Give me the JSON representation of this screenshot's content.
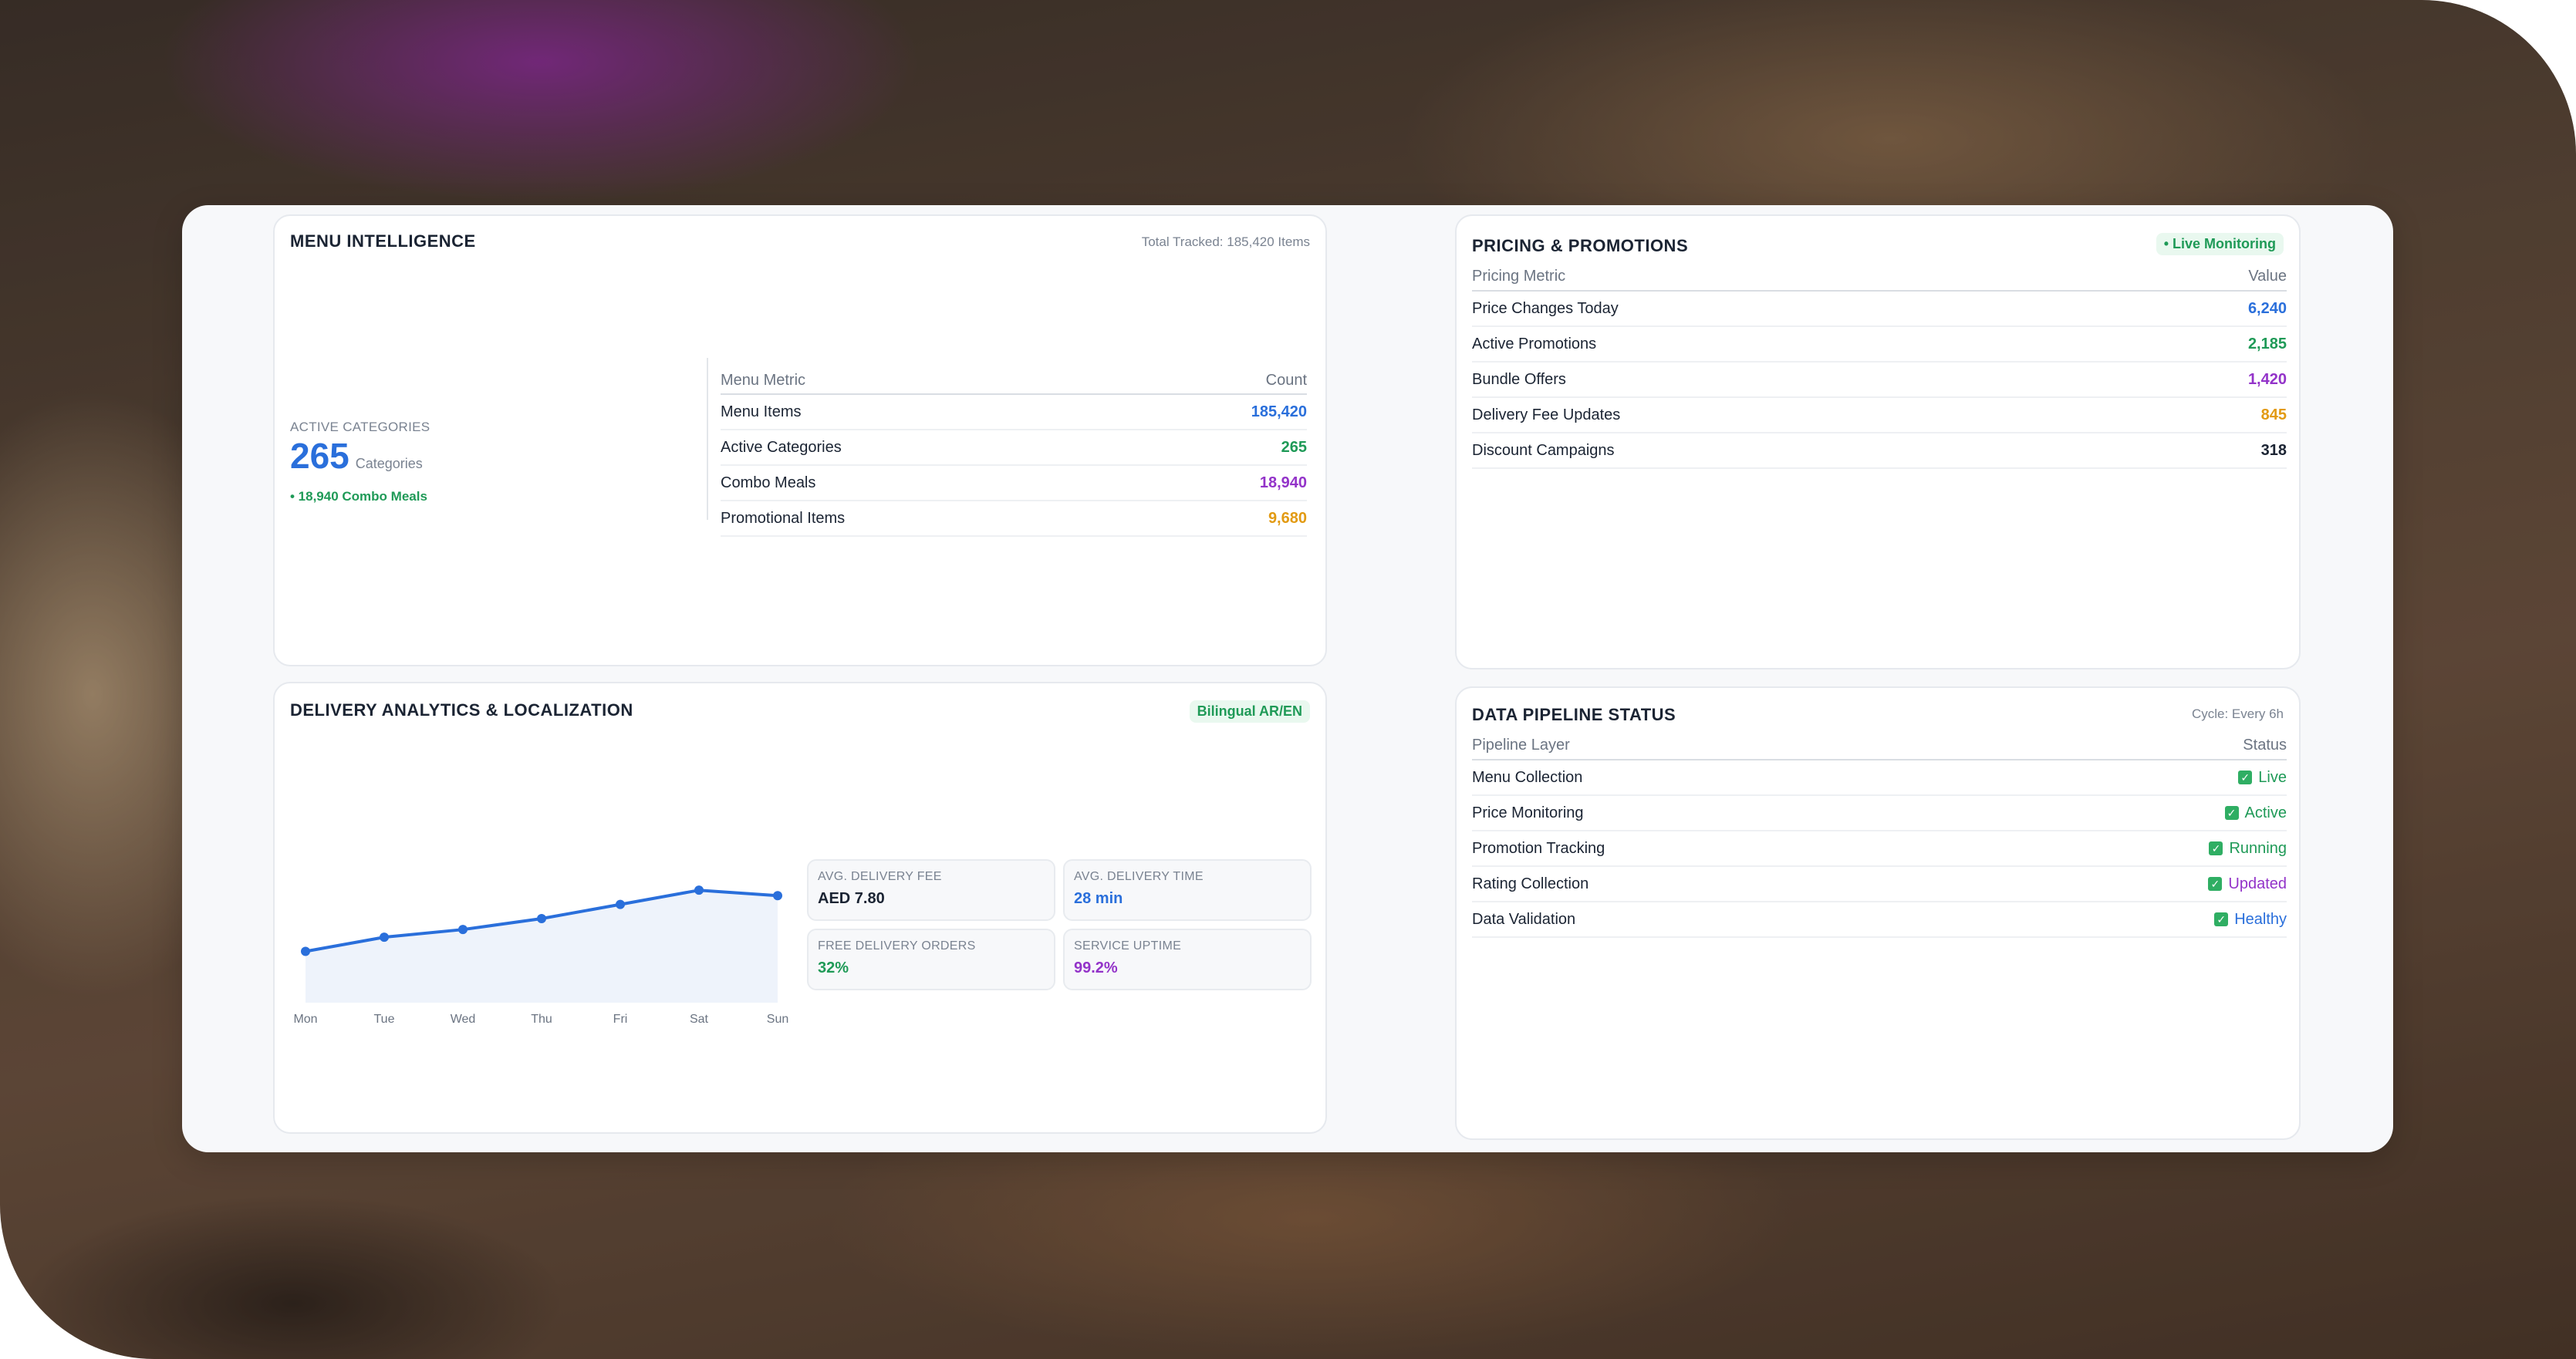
{
  "menu_intelligence": {
    "title": "MENU INTELLIGENCE",
    "total_tracked": "Total Tracked: 185,420 Items",
    "active_categories_label": "ACTIVE CATEGORIES",
    "active_categories_value": "265",
    "active_categories_unit": "Categories",
    "combo_note": "• 18,940 Combo Meals",
    "table_header": {
      "metric": "Menu Metric",
      "count": "Count"
    },
    "rows": [
      {
        "metric": "Menu Items",
        "count": "185,420",
        "color": "#2a6fdb"
      },
      {
        "metric": "Active Categories",
        "count": "265",
        "color": "#1f9a57"
      },
      {
        "metric": "Combo Meals",
        "count": "18,940",
        "color": "#9333c9"
      },
      {
        "metric": "Promotional Items",
        "count": "9,680",
        "color": "#e29a12"
      }
    ]
  },
  "pricing": {
    "title": "PRICING & PROMOTIONS",
    "badge": "• Live Monitoring",
    "table_header": {
      "metric": "Pricing Metric",
      "value": "Value"
    },
    "rows": [
      {
        "metric": "Price Changes Today",
        "value": "6,240",
        "color": "#2a6fdb"
      },
      {
        "metric": "Active Promotions",
        "value": "2,185",
        "color": "#1f9a57"
      },
      {
        "metric": "Bundle Offers",
        "value": "1,420",
        "color": "#9333c9"
      },
      {
        "metric": "Delivery Fee Updates",
        "value": "845",
        "color": "#e29a12"
      },
      {
        "metric": "Discount Campaigns",
        "value": "318",
        "color": "#1b2433"
      }
    ]
  },
  "delivery": {
    "title": "DELIVERY ANALYTICS & LOCALIZATION",
    "badge": "Bilingual AR/EN",
    "stats": [
      {
        "label": "AVG. DELIVERY FEE",
        "value": "AED 7.80",
        "color": "#1b2433"
      },
      {
        "label": "AVG. DELIVERY TIME",
        "value": "28 min",
        "color": "#2a6fdb"
      },
      {
        "label": "FREE DELIVERY ORDERS",
        "value": "32%",
        "color": "#1f9a57"
      },
      {
        "label": "SERVICE UPTIME",
        "value": "99.2%",
        "color": "#9333c9"
      }
    ]
  },
  "chart_data": {
    "type": "area",
    "categories": [
      "Mon",
      "Tue",
      "Wed",
      "Thu",
      "Fri",
      "Sat",
      "Sun"
    ],
    "values": [
      10,
      23,
      30,
      40,
      53,
      66,
      61
    ],
    "ylim": [
      -20,
      100
    ],
    "color": "#2a6fdb",
    "grid": false,
    "title": "",
    "xlabel": "",
    "ylabel": ""
  },
  "pipeline": {
    "title": "DATA PIPELINE STATUS",
    "cycle": "Cycle: Every 6h",
    "table_header": {
      "layer": "Pipeline Layer",
      "status": "Status"
    },
    "rows": [
      {
        "layer": "Menu Collection",
        "status": "Live",
        "color": "#1f9a57"
      },
      {
        "layer": "Price Monitoring",
        "status": "Active",
        "color": "#1f9a57"
      },
      {
        "layer": "Promotion Tracking",
        "status": "Running",
        "color": "#1f9a57"
      },
      {
        "layer": "Rating Collection",
        "status": "Updated",
        "color": "#9333c9"
      },
      {
        "layer": "Data Validation",
        "status": "Healthy",
        "color": "#2a6fdb"
      }
    ]
  }
}
